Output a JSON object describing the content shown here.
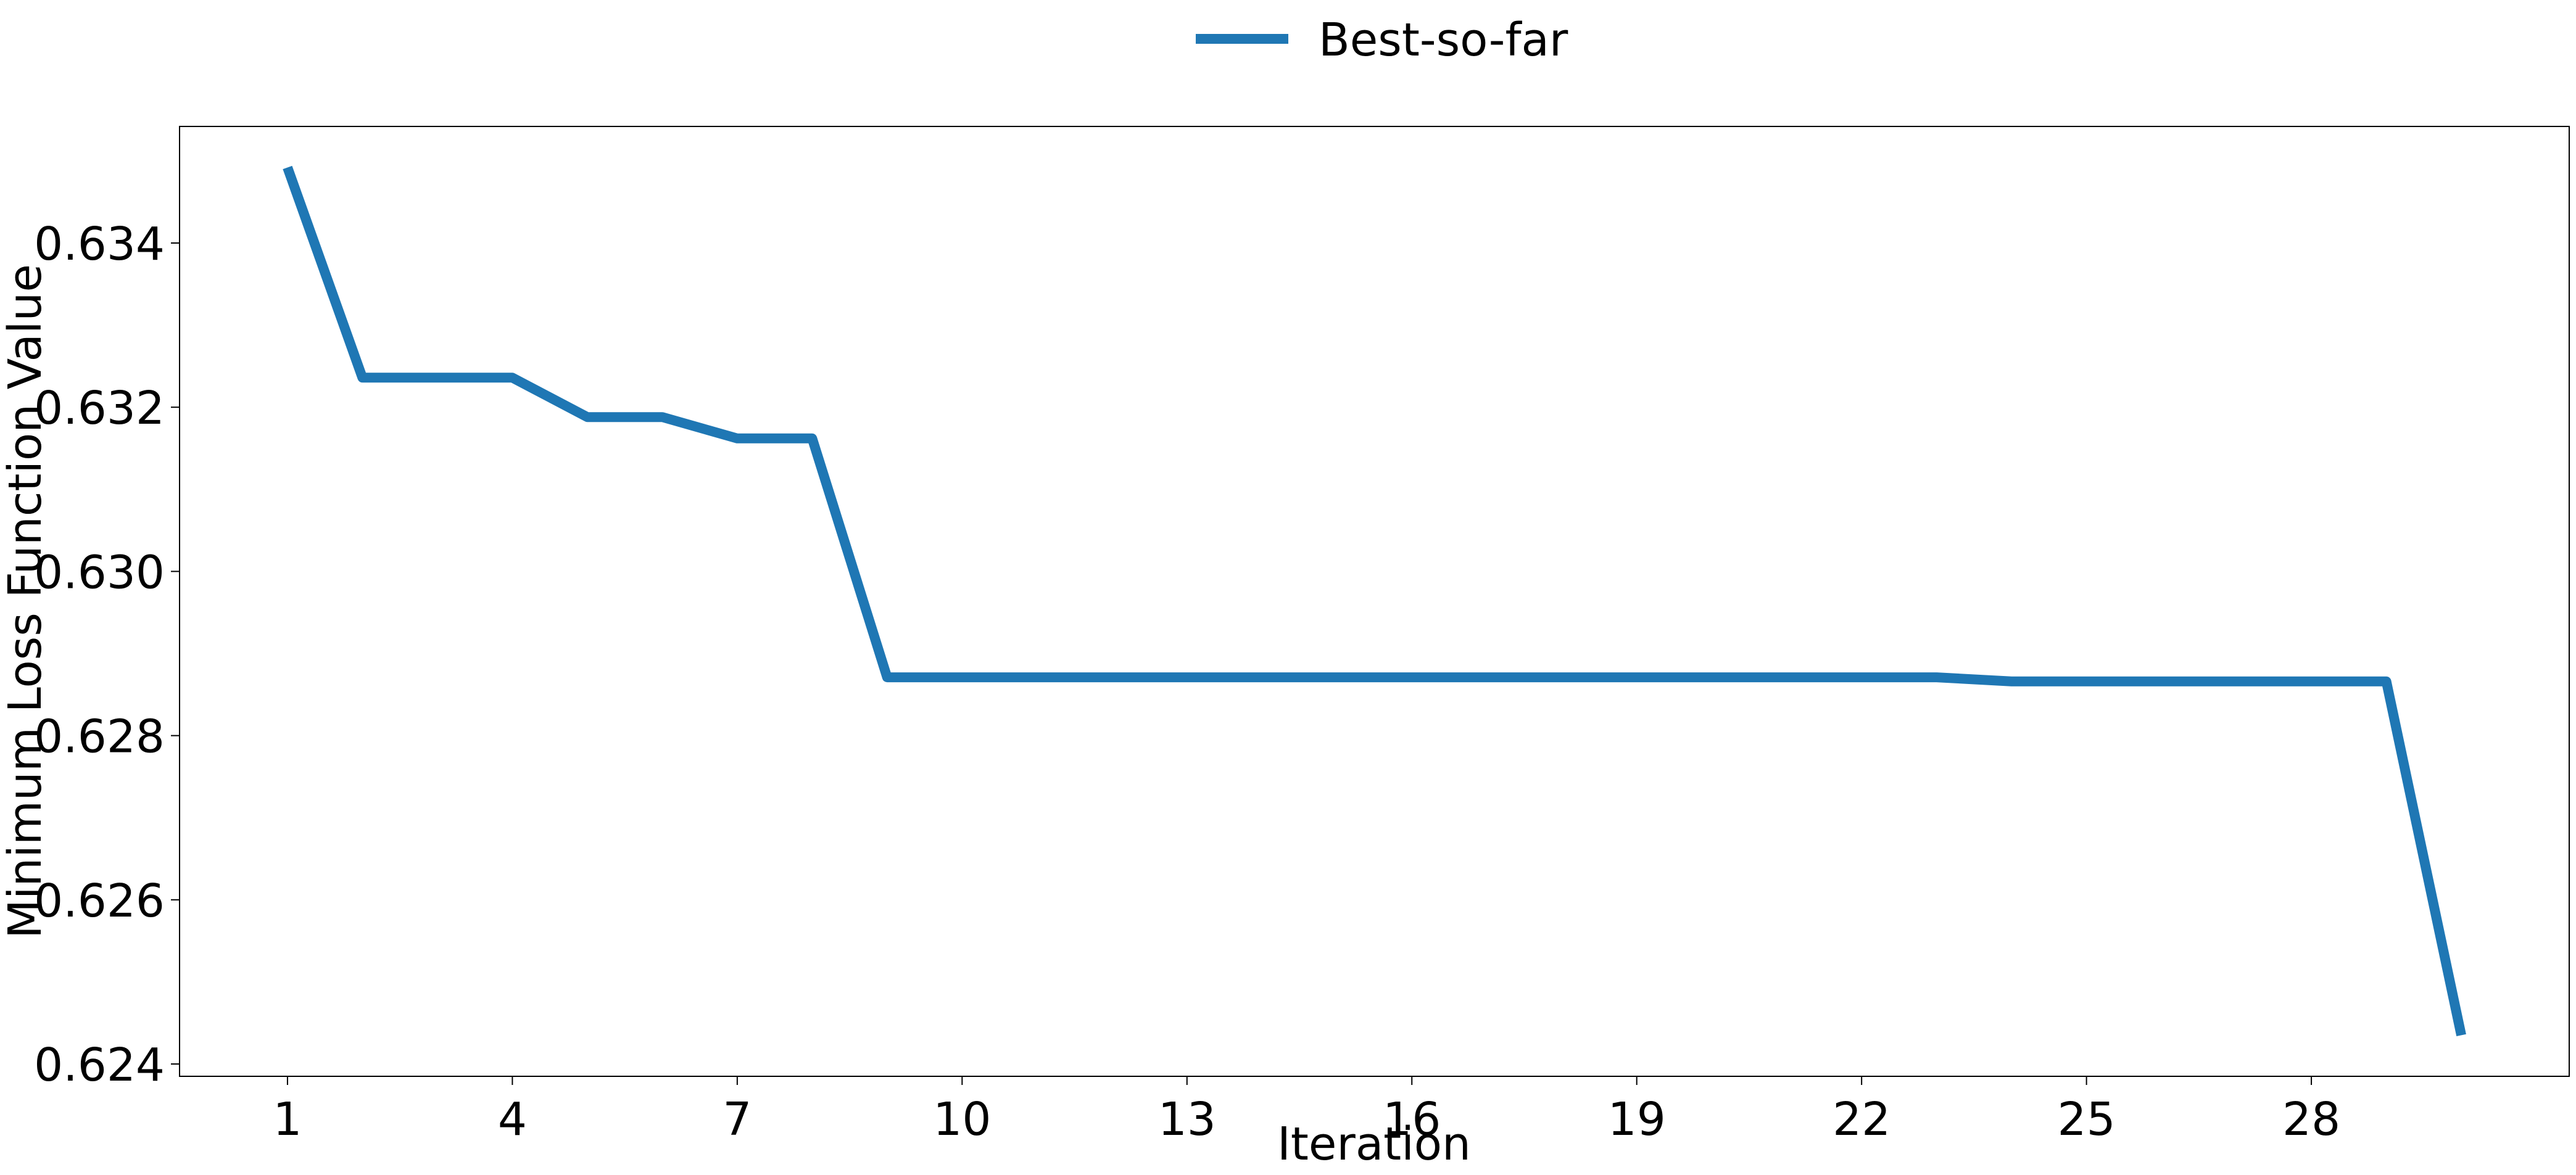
{
  "chart_data": {
    "type": "line",
    "title": "",
    "xlabel": "Iteration",
    "ylabel": "Minimum Loss Function Value",
    "x": [
      1,
      2,
      3,
      4,
      5,
      6,
      7,
      8,
      9,
      10,
      11,
      12,
      13,
      14,
      15,
      16,
      17,
      18,
      19,
      20,
      21,
      22,
      23,
      24,
      25,
      26,
      27,
      28,
      29,
      30
    ],
    "series": [
      {
        "name": "Best-so-far",
        "color": "#1f77b4",
        "values": [
          0.63492,
          0.63236,
          0.63236,
          0.63236,
          0.63188,
          0.63188,
          0.63162,
          0.63162,
          0.62871,
          0.62871,
          0.62871,
          0.62871,
          0.62871,
          0.62871,
          0.62871,
          0.62871,
          0.62871,
          0.62871,
          0.62871,
          0.62871,
          0.62871,
          0.62871,
          0.62871,
          0.62866,
          0.62866,
          0.62866,
          0.62866,
          0.62866,
          0.62866,
          0.62435
        ]
      }
    ],
    "xticks": [
      1,
      4,
      7,
      10,
      13,
      16,
      19,
      22,
      25,
      28
    ],
    "xtick_labels": [
      "1",
      "4",
      "7",
      "10",
      "13",
      "16",
      "19",
      "22",
      "25",
      "28"
    ],
    "yticks": [
      0.624,
      0.626,
      0.628,
      0.63,
      0.632,
      0.634
    ],
    "ytick_labels": [
      "0.624",
      "0.626",
      "0.628",
      "0.630",
      "0.632",
      "0.634"
    ],
    "xlim": [
      -0.44,
      31.44
    ],
    "ylim": [
      0.62385,
      0.63542
    ],
    "grid": false,
    "legend": {
      "placement": "top-center, outside plot",
      "entries": [
        "Best-so-far"
      ]
    }
  }
}
